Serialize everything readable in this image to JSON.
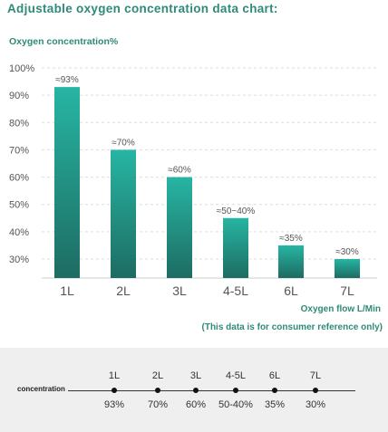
{
  "title": "Adjustable oxygen concentration data chart:",
  "chart_data": {
    "type": "bar",
    "title": "Adjustable oxygen concentration data chart:",
    "ylabel": "Oxygen concentration%",
    "xlabel": "Oxygen flow L/Min",
    "note": "(This data is for consumer reference only)",
    "categories": [
      "1L",
      "2L",
      "3L",
      "4-5L",
      "6L",
      "7L"
    ],
    "values": [
      93,
      70,
      60,
      45,
      35,
      30
    ],
    "data_labels": [
      "≈93%",
      "≈70%",
      "≈60%",
      "≈50~40%",
      "≈35%",
      "≈30%"
    ],
    "yticks": [
      {
        "value": 30,
        "label": "30%"
      },
      {
        "value": 40,
        "label": "40%"
      },
      {
        "value": 50,
        "label": "50%"
      },
      {
        "value": 60,
        "label": "60%"
      },
      {
        "value": 70,
        "label": "70%"
      },
      {
        "value": 80,
        "label": "80%"
      },
      {
        "value": 90,
        "label": "90%"
      },
      {
        "value": 100,
        "label": "100%"
      }
    ],
    "ylim": [
      25,
      100
    ],
    "grid": true,
    "colors": {
      "bar_top": "#27b5a3",
      "bar_bottom": "#1d6c62",
      "grid": "#dddddd",
      "text": "#555555"
    }
  },
  "table": {
    "row_label": "concentration",
    "columns": [
      {
        "flow": "1L",
        "concentration": "93%"
      },
      {
        "flow": "2L",
        "concentration": "70%"
      },
      {
        "flow": "3L",
        "concentration": "60%"
      },
      {
        "flow": "4-5L",
        "concentration": "50-40%"
      },
      {
        "flow": "6L",
        "concentration": "35%"
      },
      {
        "flow": "7L",
        "concentration": "30%"
      }
    ]
  },
  "colors": {
    "accent": "#2f8a78",
    "panel_bg": "#efefef"
  }
}
